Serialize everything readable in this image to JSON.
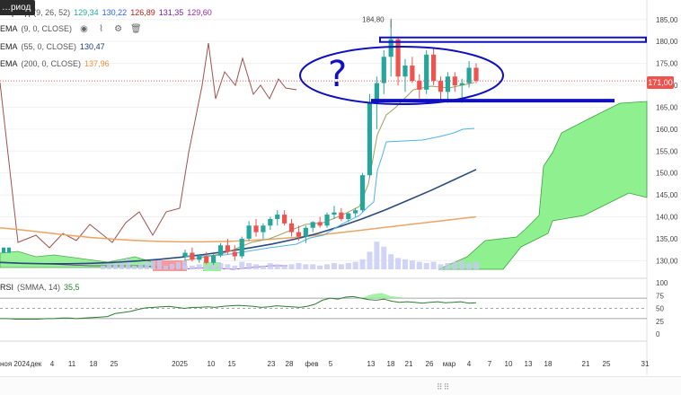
{
  "legend": {
    "ichimoku": {
      "name": "…риод",
      "params": "(9, 26, 52)",
      "values": [
        {
          "text": "129,34",
          "color": "#26a69a"
        },
        {
          "text": "130,22",
          "color": "#2962ff"
        },
        {
          "text": "126,89",
          "color": "#b71c1c"
        },
        {
          "text": "131,35",
          "color": "#7b1fa2"
        },
        {
          "text": "129,60",
          "color": "#9c27b0"
        }
      ]
    },
    "ema9": {
      "name": "EMA",
      "params": "(9, 0, CLOSE)",
      "value": "",
      "color": "#26a69a"
    },
    "ema55": {
      "name": "EMA",
      "params": "(55, 0, CLOSE)",
      "value": "130,47",
      "color": "#1e3a6e"
    },
    "ema200": {
      "name": "EMA",
      "params": "(200, 0, CLOSE)",
      "value": "137,96",
      "color": "#e69138"
    },
    "rsi": {
      "name": "RSI",
      "params": "(SMMA, 14)",
      "value": "35,5",
      "color": "#2e7d32"
    }
  },
  "badge_text": "…риод",
  "current_price": "171,00",
  "high_label": "184,80",
  "annotation_text": "?",
  "chart_data": {
    "type": "candlestick",
    "price_axis": {
      "min": 127,
      "max": 187,
      "ticks": [
        130,
        135,
        140,
        145,
        150,
        155,
        160,
        165,
        170,
        175,
        180,
        185
      ],
      "tick_labels": [
        "130,00",
        "135,00",
        "140,00",
        "145,00",
        "150,00",
        "155,00",
        "160,00",
        "165,00",
        "170,00",
        "175,00",
        "180,00",
        "185,00"
      ]
    },
    "rsi_axis": {
      "min": 0,
      "max": 100,
      "ticks": [
        0,
        25,
        50,
        75,
        100
      ],
      "levels": [
        30,
        50,
        70
      ]
    },
    "x_labels": [
      "ноя 2024",
      "4",
      "дек",
      "11",
      "18",
      "25",
      "2025",
      "10",
      "15",
      "23",
      "28",
      "фев",
      "5",
      "13",
      "18",
      "21",
      "26",
      "мар",
      "4",
      "7",
      "10",
      "13",
      "18",
      "21",
      "25",
      "31"
    ],
    "candles": [
      {
        "o": 131.0,
        "h": 132.5,
        "l": 130.2,
        "c": 131.8
      },
      {
        "o": 131.8,
        "h": 133.0,
        "l": 129.8,
        "c": 130.2
      },
      {
        "o": 130.2,
        "h": 131.5,
        "l": 129.5,
        "c": 131.0
      },
      {
        "o": 131.0,
        "h": 132.0,
        "l": 129.2,
        "c": 129.5
      },
      {
        "o": 129.5,
        "h": 131.5,
        "l": 129.0,
        "c": 131.2
      },
      {
        "o": 131.2,
        "h": 134.0,
        "l": 130.8,
        "c": 133.5
      },
      {
        "o": 133.5,
        "h": 135.0,
        "l": 131.5,
        "c": 132.0
      },
      {
        "o": 132.0,
        "h": 133.5,
        "l": 130.0,
        "c": 131.0
      },
      {
        "o": 131.0,
        "h": 135.5,
        "l": 130.5,
        "c": 135.0
      },
      {
        "o": 135.0,
        "h": 139.0,
        "l": 134.5,
        "c": 138.0
      },
      {
        "o": 138.0,
        "h": 139.5,
        "l": 135.5,
        "c": 136.5
      },
      {
        "o": 136.5,
        "h": 138.5,
        "l": 135.0,
        "c": 138.0
      },
      {
        "o": 138.0,
        "h": 140.0,
        "l": 137.0,
        "c": 139.5
      },
      {
        "o": 139.5,
        "h": 141.5,
        "l": 138.0,
        "c": 140.5
      },
      {
        "o": 140.5,
        "h": 141.5,
        "l": 138.0,
        "c": 138.5
      },
      {
        "o": 138.5,
        "h": 139.5,
        "l": 135.5,
        "c": 136.5
      },
      {
        "o": 136.5,
        "h": 138.0,
        "l": 134.5,
        "c": 135.5
      },
      {
        "o": 135.5,
        "h": 138.0,
        "l": 134.0,
        "c": 137.5
      },
      {
        "o": 137.5,
        "h": 139.0,
        "l": 136.5,
        "c": 138.8
      },
      {
        "o": 138.8,
        "h": 140.0,
        "l": 137.5,
        "c": 138.0
      },
      {
        "o": 138.0,
        "h": 141.0,
        "l": 137.5,
        "c": 140.5
      },
      {
        "o": 140.5,
        "h": 142.5,
        "l": 139.5,
        "c": 141.0
      },
      {
        "o": 141.0,
        "h": 142.0,
        "l": 139.0,
        "c": 139.5
      },
      {
        "o": 139.5,
        "h": 141.0,
        "l": 138.8,
        "c": 140.8
      },
      {
        "o": 140.8,
        "h": 142.0,
        "l": 140.0,
        "c": 141.5
      },
      {
        "o": 141.5,
        "h": 150.0,
        "l": 141.0,
        "c": 149.5
      },
      {
        "o": 149.5,
        "h": 168.0,
        "l": 149.0,
        "c": 166.0
      },
      {
        "o": 166.0,
        "h": 172.0,
        "l": 160.0,
        "c": 170.5
      },
      {
        "o": 170.5,
        "h": 178.0,
        "l": 168.0,
        "c": 176.5
      },
      {
        "o": 176.5,
        "h": 184.8,
        "l": 172.0,
        "c": 180.5
      },
      {
        "o": 180.5,
        "h": 181.0,
        "l": 170.0,
        "c": 172.0
      },
      {
        "o": 172.0,
        "h": 176.0,
        "l": 168.5,
        "c": 174.5
      },
      {
        "o": 174.5,
        "h": 176.5,
        "l": 170.5,
        "c": 171.0
      },
      {
        "o": 171.0,
        "h": 172.5,
        "l": 167.0,
        "c": 169.0
      },
      {
        "o": 169.0,
        "h": 178.0,
        "l": 168.0,
        "c": 177.0
      },
      {
        "o": 177.0,
        "h": 178.5,
        "l": 170.0,
        "c": 171.0
      },
      {
        "o": 171.0,
        "h": 172.0,
        "l": 166.5,
        "c": 168.5
      },
      {
        "o": 168.5,
        "h": 173.0,
        "l": 166.0,
        "c": 172.0
      },
      {
        "o": 172.0,
        "h": 173.0,
        "l": 168.5,
        "c": 170.0
      },
      {
        "o": 170.0,
        "h": 171.5,
        "l": 166.0,
        "c": 170.5
      },
      {
        "o": 170.5,
        "h": 175.5,
        "l": 169.5,
        "c": 174.0
      },
      {
        "o": 174.0,
        "h": 175.0,
        "l": 170.5,
        "c": 171.0
      }
    ],
    "ema200_points": [
      137.5,
      137.0,
      136.4,
      135.8,
      135.3,
      134.9,
      134.6,
      134.4,
      134.3,
      134.3,
      134.4,
      134.6,
      134.9,
      135.3,
      135.8,
      136.4,
      137.0,
      137.6,
      138.2,
      138.8,
      139.4,
      140.0
    ],
    "ema55_points": [
      129.6,
      129.4,
      129.3,
      129.3,
      129.4,
      129.6,
      129.9,
      130.3,
      130.8,
      131.4,
      132.1,
      132.9,
      133.8,
      134.9,
      136.2,
      137.8,
      139.6,
      141.6,
      143.8,
      146.0,
      148.4,
      150.8
    ],
    "rsi_values": [
      30,
      30,
      29,
      29,
      29,
      29,
      30,
      30,
      31,
      31,
      30,
      31,
      32,
      33,
      34,
      40,
      42,
      44,
      48,
      51,
      52,
      53,
      54,
      52,
      50,
      52,
      52,
      53,
      52,
      54,
      55,
      56,
      55,
      54,
      52,
      53,
      55,
      54,
      53,
      52,
      54,
      58,
      66,
      70,
      68,
      72,
      73,
      70,
      67,
      66,
      68,
      64,
      62,
      63,
      62,
      60,
      62,
      63,
      61,
      62,
      63,
      60,
      61
    ],
    "volume": [
      3,
      3,
      4,
      3,
      4,
      5,
      4,
      3,
      6,
      5,
      4,
      3,
      5,
      4,
      3,
      4,
      5,
      4,
      4,
      3,
      4,
      5,
      4,
      5,
      6,
      8,
      14,
      22,
      18,
      12,
      9,
      8,
      7,
      6,
      5,
      6,
      4,
      5,
      6,
      7,
      5,
      6
    ],
    "price_line": 171.0,
    "channel_top": 180.5,
    "channel_bottom": 166.5
  }
}
